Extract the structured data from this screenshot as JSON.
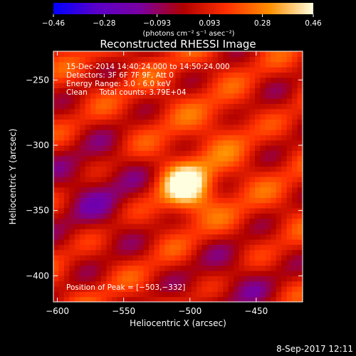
{
  "chart_data": {
    "type": "heatmap",
    "title": "Reconstructed RHESSI Image",
    "xlabel": "Heliocentric X (arcsec)",
    "ylabel": "Heliocentric Y (arcsec)",
    "xlim": [
      -603,
      -415
    ],
    "ylim": [
      -420,
      -228
    ],
    "x_ticks": [
      -600,
      -550,
      -500,
      -450
    ],
    "x_tick_labels": [
      "−600",
      "−550",
      "−500",
      "−450"
    ],
    "y_ticks": [
      -250,
      -300,
      -350,
      -400
    ],
    "y_tick_labels": [
      "−250",
      "−300",
      "−350",
      "−400"
    ],
    "colorbar": {
      "min": -0.46,
      "max": 0.46,
      "ticks": [
        -0.46,
        -0.28,
        -0.093,
        0.093,
        0.28,
        0.46
      ],
      "tick_labels": [
        "−0.46",
        "−0.28",
        "−0.093",
        "0.093",
        "0.28",
        "0.46"
      ],
      "unit_label": "(photons cm⁻² s⁻¹ asec⁻²)",
      "colors": [
        "#0000ff",
        "#5a00c8",
        "#7a00a0",
        "#b00000",
        "#ff3000",
        "#ff9000",
        "#ffffe0"
      ]
    },
    "peak": {
      "x": -503,
      "y": -332,
      "value": 0.46
    },
    "annotations": [
      "15-Dec-2014 14:40:24.000 to 14:50:24.000",
      "Detectors: 3F 6F 7F 9F, Att 0",
      "Energy Range: 3.0 - 6.0 keV",
      "Clean     Total counts: 3.79E+04"
    ],
    "peak_label": "Position of Peak = [−503,−332]",
    "timestamp": "8-Sep-2017 12:11"
  }
}
